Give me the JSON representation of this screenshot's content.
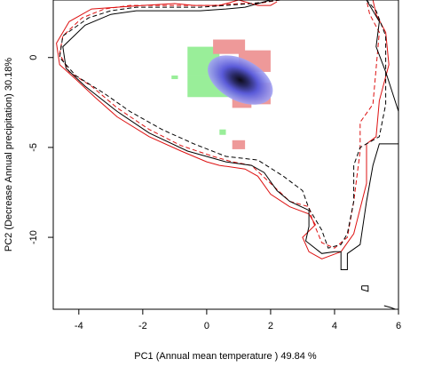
{
  "chart_data": {
    "type": "scatter",
    "title": "",
    "xlabel": "PC1 (Annual mean temperature ) 49.84 %",
    "ylabel": "PC2 (Decrease Annual precipitation) 30.18%",
    "xlim": [
      -4.8,
      6.0
    ],
    "ylim": [
      -14.0,
      3.2
    ],
    "x_ticks": [
      "-4",
      "-2",
      "0",
      "2",
      "4",
      "6"
    ],
    "x_tick_values": [
      -4,
      -2,
      0,
      2,
      4,
      6
    ],
    "y_ticks": [
      "-10",
      "-5",
      "0"
    ],
    "y_tick_values": [
      -10,
      -5,
      0
    ],
    "grid": false,
    "legend": "none",
    "colors": {
      "green_cells": "#99ee99",
      "red_cells": "#ee9999",
      "blue_density": "#6666ee",
      "dark_core": "#111133",
      "contour_red": "#dd1111",
      "contour_black": "#000000"
    },
    "density_cells": [
      {
        "group": "green",
        "x": -0.6,
        "y": 0.6,
        "w": 1.0,
        "h": 1.6
      },
      {
        "group": "green",
        "x": -0.6,
        "y": -1.0,
        "w": 1.8,
        "h": 1.2
      },
      {
        "group": "green",
        "x": 0.8,
        "y": -1.8,
        "w": 0.8,
        "h": 0.6
      },
      {
        "group": "green",
        "x": -1.1,
        "y": -1.0,
        "w": 0.2,
        "h": 0.2
      },
      {
        "group": "green",
        "x": 0.4,
        "y": -4.0,
        "w": 0.2,
        "h": 0.3
      },
      {
        "group": "red",
        "x": 0.2,
        "y": 1.0,
        "w": 1.0,
        "h": 0.8
      },
      {
        "group": "red",
        "x": 1.0,
        "y": 0.4,
        "w": 1.0,
        "h": 1.2
      },
      {
        "group": "red",
        "x": 1.4,
        "y": -1.4,
        "w": 0.6,
        "h": 1.2
      },
      {
        "group": "red",
        "x": 0.8,
        "y": -2.2,
        "w": 0.6,
        "h": 0.6
      },
      {
        "group": "red",
        "x": 0.8,
        "y": -4.6,
        "w": 0.4,
        "h": 0.5
      }
    ],
    "density_peak": {
      "x": 1.05,
      "y": -1.25,
      "rx": 1.1,
      "ry": 1.15
    },
    "series": [
      {
        "color": "red",
        "dash": "solid",
        "points": [
          [
            2.2,
            3.1
          ],
          [
            2.0,
            2.9
          ],
          [
            1.6,
            2.9
          ],
          [
            1.0,
            3.2
          ],
          [
            0.4,
            2.9
          ],
          [
            -0.4,
            2.9
          ],
          [
            -1.0,
            3.0
          ],
          [
            -2.0,
            2.9
          ],
          [
            -2.8,
            2.8
          ],
          [
            -3.6,
            2.7
          ],
          [
            -4.3,
            2.0
          ],
          [
            -4.7,
            0.8
          ],
          [
            -4.6,
            -0.4
          ],
          [
            -4.1,
            -1.2
          ],
          [
            -3.5,
            -2.2
          ],
          [
            -2.8,
            -3.3
          ],
          [
            -1.8,
            -4.4
          ],
          [
            -0.8,
            -5.2
          ],
          [
            0.0,
            -5.8
          ],
          [
            0.4,
            -6.0
          ],
          [
            1.2,
            -6.2
          ],
          [
            1.6,
            -6.6
          ],
          [
            2.0,
            -7.6
          ],
          [
            2.6,
            -8.3
          ],
          [
            3.2,
            -8.7
          ],
          [
            3.4,
            -9.3
          ],
          [
            3.0,
            -10.0
          ],
          [
            3.2,
            -10.8
          ],
          [
            3.6,
            -11.2
          ],
          [
            4.2,
            -10.8
          ],
          [
            4.6,
            -9.8
          ],
          [
            5.0,
            -7.0
          ],
          [
            5.0,
            -4.8
          ],
          [
            5.3,
            -4.4
          ],
          [
            5.4,
            -2.4
          ],
          [
            5.7,
            -0.4
          ],
          [
            5.6,
            1.4
          ],
          [
            5.3,
            2.4
          ],
          [
            5.2,
            3.2
          ]
        ]
      },
      {
        "color": "red",
        "dash": "dashed",
        "points": [
          [
            2.3,
            3.2
          ],
          [
            1.6,
            3.0
          ],
          [
            1.0,
            3.0
          ],
          [
            0.2,
            2.9
          ],
          [
            -0.6,
            2.9
          ],
          [
            -1.4,
            2.9
          ],
          [
            -2.4,
            2.9
          ],
          [
            -3.2,
            2.7
          ],
          [
            -3.9,
            2.2
          ],
          [
            -4.5,
            1.2
          ],
          [
            -4.6,
            0.2
          ],
          [
            -4.3,
            -0.8
          ],
          [
            -3.6,
            -1.6
          ],
          [
            -2.8,
            -2.8
          ],
          [
            -1.8,
            -4.0
          ],
          [
            -0.8,
            -4.9
          ],
          [
            0.2,
            -5.5
          ],
          [
            0.8,
            -5.8
          ],
          [
            1.4,
            -6.0
          ],
          [
            2.0,
            -7.0
          ],
          [
            2.6,
            -8.0
          ],
          [
            3.2,
            -8.3
          ],
          [
            3.3,
            -9.0
          ],
          [
            3.6,
            -10.3
          ],
          [
            4.0,
            -10.6
          ],
          [
            4.4,
            -10.0
          ],
          [
            4.6,
            -8.0
          ],
          [
            4.8,
            -5.2
          ],
          [
            4.8,
            -3.6
          ],
          [
            5.2,
            -2.6
          ],
          [
            5.3,
            -0.6
          ],
          [
            5.4,
            1.4
          ],
          [
            5.1,
            2.4
          ],
          [
            5.0,
            3.2
          ]
        ]
      },
      {
        "color": "black",
        "dash": "solid",
        "points": [
          [
            2.0,
            3.2
          ],
          [
            1.2,
            2.8
          ],
          [
            0.6,
            2.7
          ],
          [
            -0.2,
            2.6
          ],
          [
            -1.2,
            2.6
          ],
          [
            -2.2,
            2.6
          ],
          [
            -3.0,
            2.4
          ],
          [
            -3.8,
            1.8
          ],
          [
            -4.5,
            0.6
          ],
          [
            -4.4,
            -0.6
          ],
          [
            -3.8,
            -1.6
          ],
          [
            -2.8,
            -3.0
          ],
          [
            -1.8,
            -4.2
          ],
          [
            -0.6,
            -5.2
          ],
          [
            0.6,
            -5.8
          ],
          [
            1.4,
            -6.0
          ],
          [
            1.8,
            -6.4
          ],
          [
            2.2,
            -7.4
          ],
          [
            2.6,
            -8.0
          ],
          [
            3.2,
            -8.5
          ],
          [
            3.2,
            -9.4
          ],
          [
            3.1,
            -10.2
          ],
          [
            3.6,
            -10.9
          ],
          [
            4.0,
            -10.8
          ],
          [
            4.2,
            -10.8
          ],
          [
            4.2,
            -11.8
          ],
          [
            4.4,
            -11.8
          ],
          [
            4.4,
            -10.9
          ],
          [
            4.8,
            -10.4
          ],
          [
            5.0,
            -8.0
          ],
          [
            5.2,
            -6.0
          ],
          [
            5.4,
            -4.8
          ],
          [
            6.0,
            -4.8
          ]
        ]
      },
      {
        "color": "black",
        "dash": "solid",
        "points": [
          [
            6.0,
            -3.0
          ],
          [
            5.6,
            -0.8
          ],
          [
            5.3,
            0.6
          ],
          [
            5.4,
            2.0
          ],
          [
            5.0,
            3.2
          ]
        ]
      },
      {
        "color": "black",
        "dash": "dashed",
        "points": [
          [
            2.3,
            3.2
          ],
          [
            1.4,
            3.0
          ],
          [
            0.6,
            2.9
          ],
          [
            -0.2,
            2.8
          ],
          [
            -1.2,
            2.8
          ],
          [
            -2.2,
            2.8
          ],
          [
            -3.0,
            2.6
          ],
          [
            -3.7,
            2.2
          ],
          [
            -4.5,
            1.2
          ],
          [
            -4.6,
            0.0
          ],
          [
            -4.1,
            -1.0
          ],
          [
            -3.2,
            -2.0
          ],
          [
            -2.4,
            -3.0
          ],
          [
            -1.4,
            -4.0
          ],
          [
            -0.4,
            -4.8
          ],
          [
            0.6,
            -5.5
          ],
          [
            1.6,
            -5.7
          ],
          [
            2.4,
            -6.6
          ],
          [
            3.0,
            -7.4
          ],
          [
            3.2,
            -8.4
          ],
          [
            3.6,
            -9.6
          ],
          [
            3.8,
            -10.6
          ],
          [
            4.2,
            -10.4
          ],
          [
            4.4,
            -9.8
          ],
          [
            4.6,
            -8.0
          ],
          [
            4.6,
            -6.0
          ],
          [
            4.8,
            -5.0
          ],
          [
            5.4,
            -4.4
          ],
          [
            5.6,
            -2.6
          ],
          [
            5.6,
            -0.6
          ],
          [
            5.6,
            1.2
          ],
          [
            5.3,
            2.6
          ],
          [
            5.0,
            3.2
          ]
        ]
      },
      {
        "color": "black",
        "dash": "solid",
        "points": [
          [
            4.85,
            -12.7
          ],
          [
            5.05,
            -12.7
          ],
          [
            5.05,
            -13.0
          ],
          [
            4.85,
            -12.9
          ],
          [
            4.85,
            -12.7
          ]
        ]
      },
      {
        "color": "black",
        "dash": "solid",
        "points": [
          [
            5.55,
            -13.8
          ],
          [
            5.75,
            -13.9
          ],
          [
            5.9,
            -14.0
          ]
        ]
      }
    ]
  }
}
